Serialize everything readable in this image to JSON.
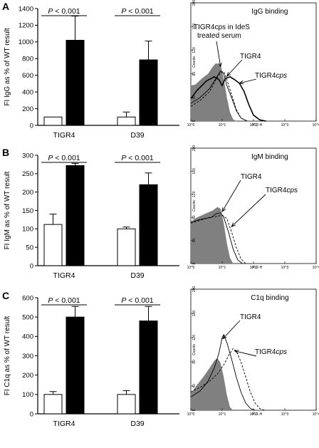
{
  "figure": {
    "panels": [
      {
        "letter": "A",
        "histogram_title": "IgG binding",
        "histogram_xlabel": "FL2-H",
        "histogram_ylabel": "Counts",
        "histogram_labels": [
          "TIGR4cps in IdeS",
          "treated serum",
          "TIGR4",
          "TIGR4cps"
        ]
      },
      {
        "letter": "B",
        "histogram_title": "IgM binding",
        "histogram_xlabel": "FL2-H",
        "histogram_ylabel": "Counts",
        "histogram_labels": [
          "TIGR4",
          "TIGR4cps"
        ]
      },
      {
        "letter": "C",
        "histogram_title": "C1q binding",
        "histogram_xlabel": "FL1-H",
        "histogram_ylabel": "Counts",
        "histogram_labels": [
          "TIGR4",
          "TIGR4cps"
        ]
      }
    ],
    "histogram_x_ticks": [
      "10^0",
      "10^1",
      "10^2",
      "10^3",
      "10^4"
    ],
    "histogram_y_ticks": [
      [
        "0",
        "40",
        "80",
        "120",
        "160",
        "200"
      ],
      [
        "0",
        "40",
        "80",
        "120",
        "160",
        "200"
      ],
      [
        "0",
        "40",
        "80",
        "120",
        "160",
        "200"
      ]
    ],
    "colors": {
      "wt_bar": "#ffffff",
      "mutant_bar": "#000000",
      "hist_fill": "#808080"
    }
  },
  "chart_data": [
    {
      "type": "bar",
      "ylabel": "FI IgG as % of WT result",
      "categories": [
        "TIGR4",
        "D39"
      ],
      "series": [
        {
          "values": [
            100,
            100
          ],
          "errors": [
            0,
            60
          ]
        },
        {
          "values": [
            1020,
            785
          ],
          "errors": [
            290,
            225
          ]
        }
      ],
      "ylim": [
        0,
        1400
      ],
      "yticks": [
        0,
        200,
        400,
        600,
        800,
        1000,
        1200,
        1400
      ],
      "annotations": [
        {
          "group": 0,
          "P": "P",
          "text": " < 0.001"
        },
        {
          "group": 1,
          "P": "P",
          "text": " < 0.001"
        }
      ]
    },
    {
      "type": "bar",
      "ylabel": "FI IgM as % of WT result",
      "categories": [
        "TIGR4",
        "D39"
      ],
      "series": [
        {
          "values": [
            112,
            100
          ],
          "errors": [
            28,
            5
          ]
        },
        {
          "values": [
            272,
            220
          ],
          "errors": [
            6,
            32
          ]
        }
      ],
      "ylim": [
        0,
        300
      ],
      "yticks": [
        0,
        50,
        100,
        150,
        200,
        250,
        300
      ],
      "annotations": [
        {
          "group": 0,
          "P": "P",
          "text": " < 0.001"
        },
        {
          "group": 1,
          "P": "P",
          "text": " < 0.001"
        }
      ]
    },
    {
      "type": "bar",
      "ylabel": "FI C1q as % of WT result",
      "categories": [
        "TIGR4",
        "D39"
      ],
      "series": [
        {
          "values": [
            100,
            100
          ],
          "errors": [
            15,
            20
          ]
        },
        {
          "values": [
            500,
            480
          ],
          "errors": [
            55,
            75
          ]
        }
      ],
      "ylim": [
        0,
        600
      ],
      "yticks": [
        0,
        100,
        200,
        300,
        400,
        500,
        600
      ],
      "annotations": [
        {
          "group": 0,
          "P": "P",
          "text": " < 0.001"
        },
        {
          "group": 1,
          "P": "P",
          "text": " < 0.001"
        }
      ]
    }
  ]
}
